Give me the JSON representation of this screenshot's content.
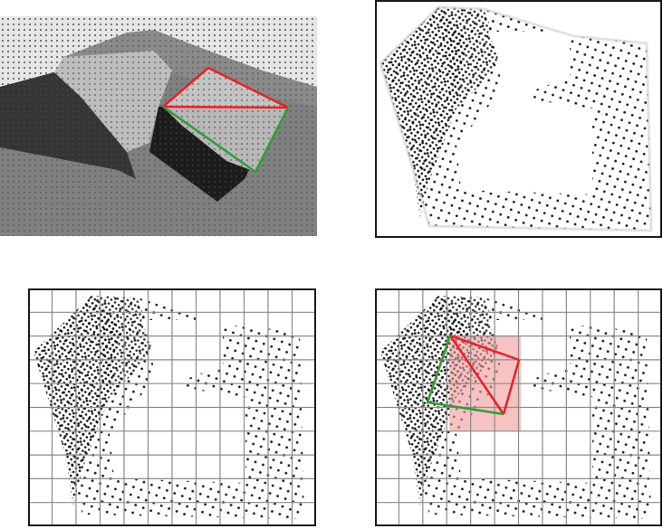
{
  "figure": {
    "panels": [
      {
        "id": "depth-image",
        "kind": "stippled depth image with triangle"
      },
      {
        "id": "point-cloud",
        "kind": "stippled point projection"
      },
      {
        "id": "point-cloud-grid",
        "kind": "point projection with grid"
      },
      {
        "id": "point-cloud-grid-triangle",
        "kind": "point projection with grid, triangle and highlighted cells"
      }
    ],
    "colors": {
      "red_edge": "#e8202a",
      "green_edge": "#2f9e3a",
      "highlight": "#f19a9a",
      "grid_line": "#8a8a8a",
      "frame": "#1a1a1a",
      "dot": "#1a1a1a"
    },
    "grid": {
      "columns": 12,
      "rows": 10
    }
  }
}
